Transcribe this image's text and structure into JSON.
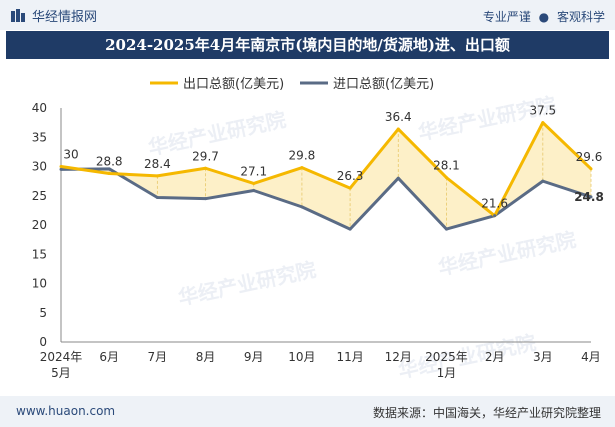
{
  "header": {
    "brand": "华经情报网",
    "tagline_left": "专业严谨",
    "tagline_sep": "●",
    "tagline_right": "客观科学"
  },
  "title": "2024-2025年4月年南京市(境内目的地/货源地)进、出口额",
  "watermark": "华经产业研究院",
  "footer": {
    "website": "www.huaon.com",
    "source": "数据来源：中国海关，华经产业研究院整理"
  },
  "colors": {
    "export": "#f5b800",
    "import": "#5a6b85",
    "fill": "#fdf0c8",
    "titlebar": "#1f3b66"
  },
  "chart_data": {
    "type": "line",
    "categories": [
      [
        "2024年",
        "5月"
      ],
      [
        "6月"
      ],
      [
        "7月"
      ],
      [
        "8月"
      ],
      [
        "9月"
      ],
      [
        "10月"
      ],
      [
        "11月"
      ],
      [
        "12月"
      ],
      [
        "2025年",
        "1月"
      ],
      [
        "2月"
      ],
      [
        "3月"
      ],
      [
        "4月"
      ]
    ],
    "series": [
      {
        "name": "出口总额(亿美元)",
        "values": [
          30,
          28.8,
          28.4,
          29.7,
          27.1,
          29.8,
          26.3,
          36.4,
          28.1,
          21.6,
          37.5,
          29.6
        ],
        "labels": true
      },
      {
        "name": "进口总额(亿美元)",
        "values": [
          29.5,
          29.6,
          24.7,
          24.5,
          25.9,
          23.1,
          19.3,
          28.0,
          19.3,
          21.6,
          27.5,
          24.8
        ],
        "labels": false,
        "last_label": "24.8"
      }
    ],
    "ylim": [
      0,
      40
    ],
    "yticks": [
      0,
      5,
      10,
      15,
      20,
      25,
      30,
      35,
      40
    ],
    "legend": "top-center",
    "grid": false
  }
}
